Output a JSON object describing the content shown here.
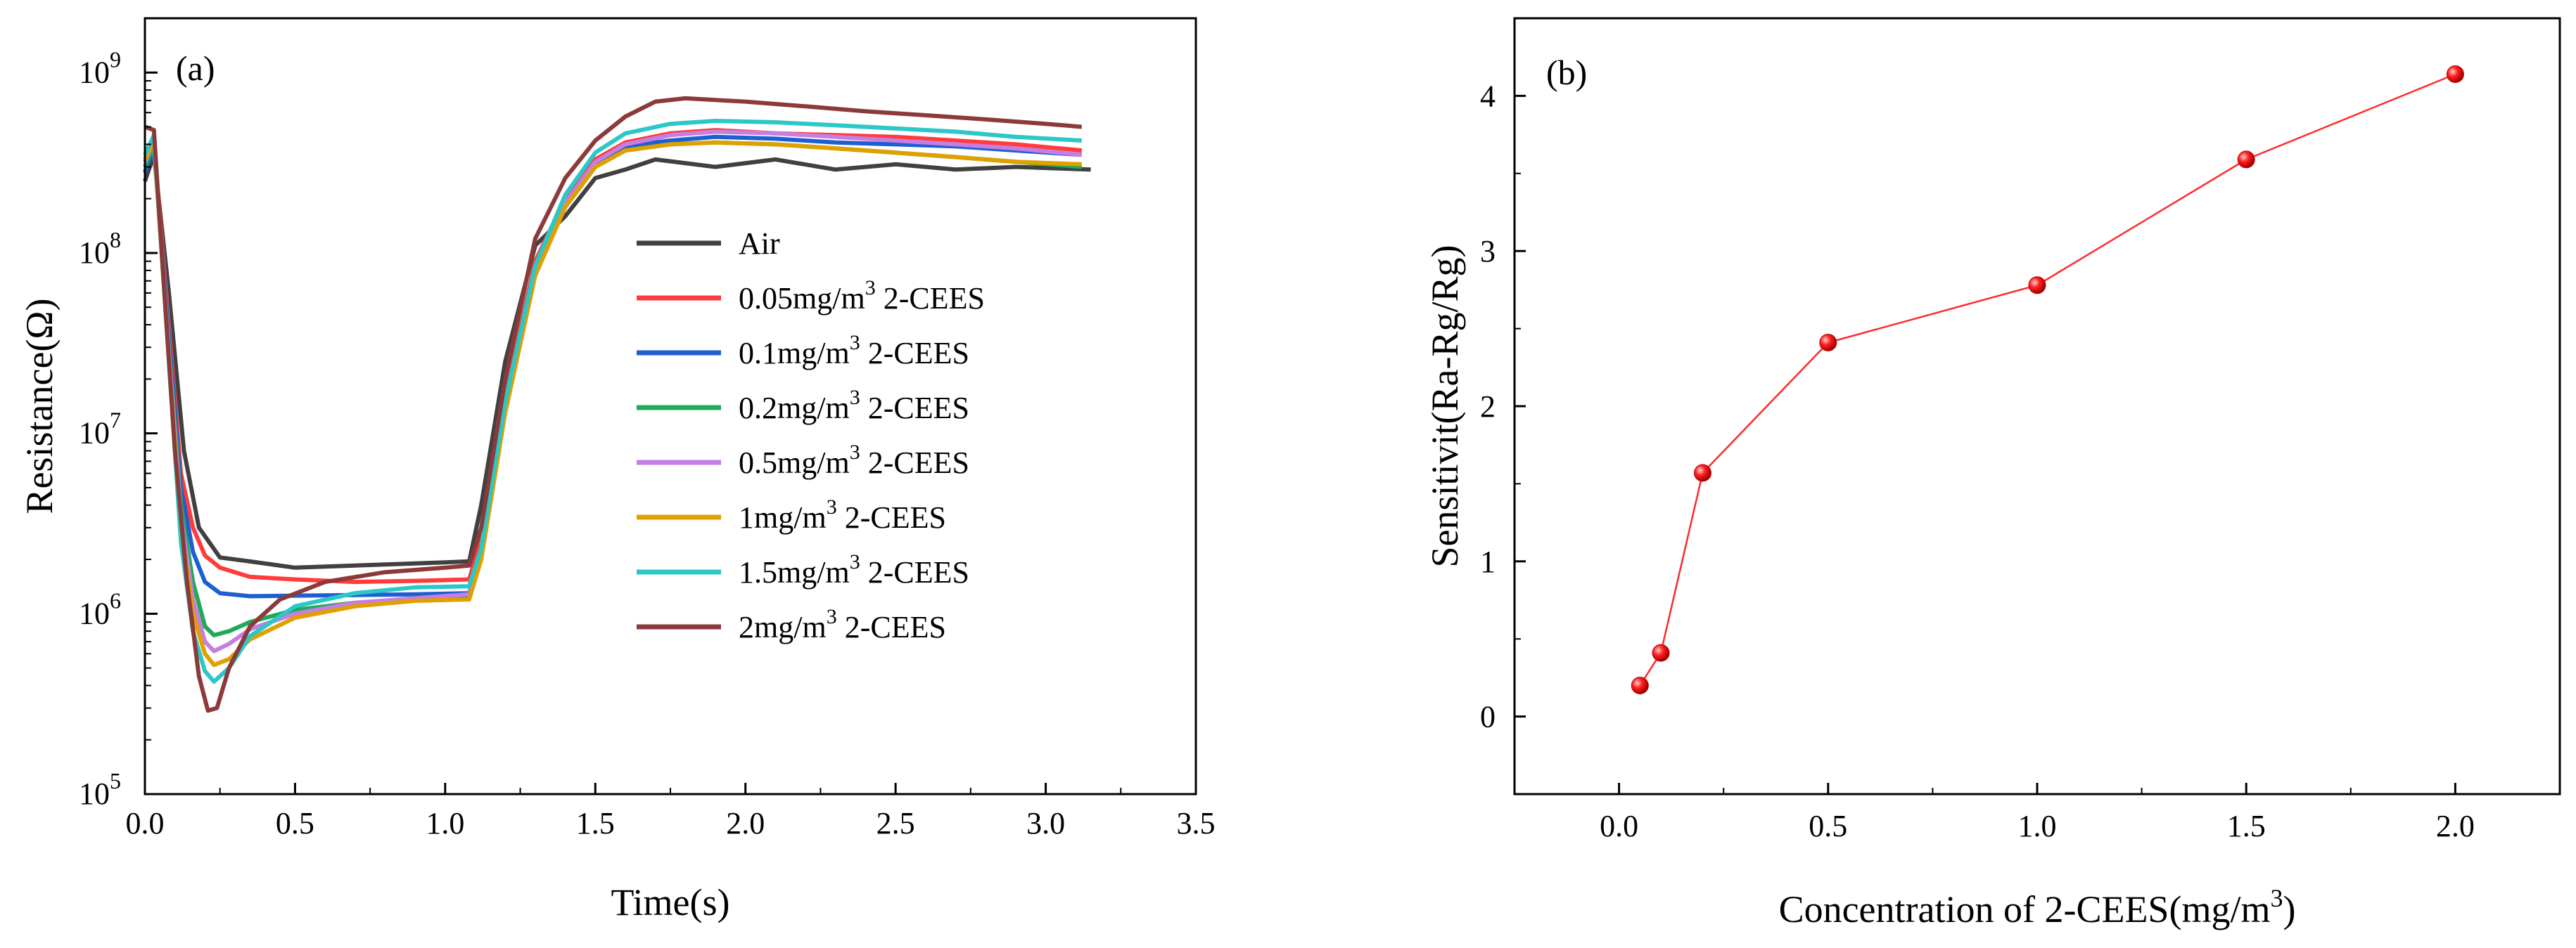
{
  "chart_data": [
    {
      "type": "line",
      "panel_label": "(a)",
      "xlabel": "Time(s)",
      "ylabel": "Resistance(Ω)",
      "xlim": [
        0,
        3.5
      ],
      "ylim": [
        100000,
        2000000000
      ],
      "yscale": "log",
      "xticks": [
        "0.0",
        "0.5",
        "1.0",
        "1.5",
        "2.0",
        "2.5",
        "3.0",
        "3.5"
      ],
      "yticks": [
        {
          "base": "10",
          "exp": "5"
        },
        {
          "base": "10",
          "exp": "6"
        },
        {
          "base": "10",
          "exp": "7"
        },
        {
          "base": "10",
          "exp": "8"
        },
        {
          "base": "10",
          "exp": "9"
        }
      ],
      "legend_position": "center-right",
      "series": [
        {
          "name": "Air",
          "color": "#404040",
          "t": [
            0,
            0.03,
            0.08,
            0.13,
            0.18,
            0.25,
            0.35,
            0.5,
            0.7,
            0.9,
            1.08,
            1.12,
            1.2,
            1.3,
            1.4,
            1.5,
            1.6,
            1.7,
            1.9,
            2.1,
            2.3,
            2.5,
            2.7,
            2.9,
            3.15
          ],
          "v": [
            250000000,
            350000000,
            60000000,
            8000000,
            3000000,
            2050000,
            1950000,
            1800000,
            1850000,
            1900000,
            1950000,
            4000000,
            25000000,
            110000000,
            160000000,
            260000000,
            290000000,
            330000000,
            300000000,
            330000000,
            290000000,
            310000000,
            290000000,
            300000000,
            290000000
          ]
        },
        {
          "name": "0.05mg/m3 2-CEES",
          "color": "#ff3b3b",
          "t": [
            0,
            0.03,
            0.08,
            0.12,
            0.16,
            0.2,
            0.25,
            0.35,
            0.5,
            0.7,
            0.9,
            1.08,
            1.12,
            1.2,
            1.3,
            1.4,
            1.5,
            1.6,
            1.75,
            1.9,
            2.1,
            2.3,
            2.5,
            2.7,
            2.9,
            3.12
          ],
          "v": [
            280000000,
            400000000,
            40000000,
            6000000,
            3000000,
            2100000,
            1800000,
            1600000,
            1550000,
            1500000,
            1520000,
            1550000,
            2600000,
            16000000,
            90000000,
            200000000,
            330000000,
            410000000,
            460000000,
            480000000,
            460000000,
            450000000,
            440000000,
            420000000,
            400000000,
            370000000
          ]
        },
        {
          "name": "0.1mg/m3 2-CEES",
          "color": "#1e5fd0",
          "t": [
            0,
            0.03,
            0.08,
            0.12,
            0.16,
            0.2,
            0.25,
            0.35,
            0.5,
            0.7,
            0.9,
            1.08,
            1.12,
            1.2,
            1.3,
            1.4,
            1.5,
            1.6,
            1.75,
            1.9,
            2.1,
            2.3,
            2.5,
            2.7,
            2.9,
            3.12
          ],
          "v": [
            280000000,
            380000000,
            35000000,
            5000000,
            2200000,
            1500000,
            1300000,
            1250000,
            1260000,
            1270000,
            1280000,
            1300000,
            2200000,
            15000000,
            85000000,
            190000000,
            310000000,
            390000000,
            420000000,
            440000000,
            430000000,
            410000000,
            400000000,
            390000000,
            370000000,
            350000000
          ]
        },
        {
          "name": "0.2mg/m3 2-CEES",
          "color": "#1faa5a",
          "t": [
            0,
            0.03,
            0.08,
            0.12,
            0.16,
            0.2,
            0.23,
            0.28,
            0.35,
            0.5,
            0.7,
            0.9,
            1.08,
            1.12,
            1.2,
            1.3,
            1.4,
            1.5,
            1.6,
            1.75,
            1.9,
            2.1,
            2.3,
            2.5,
            2.7,
            2.9,
            3.12
          ],
          "v": [
            300000000,
            400000000,
            30000000,
            4000000,
            1500000,
            850000,
            760000,
            800000,
            900000,
            1050000,
            1150000,
            1200000,
            1250000,
            2100000,
            14000000,
            80000000,
            180000000,
            300000000,
            370000000,
            400000000,
            410000000,
            400000000,
            380000000,
            360000000,
            340000000,
            320000000,
            300000000
          ]
        },
        {
          "name": "0.5mg/m3 2-CEES",
          "color": "#c67ee2",
          "t": [
            0,
            0.03,
            0.08,
            0.12,
            0.16,
            0.2,
            0.23,
            0.28,
            0.35,
            0.5,
            0.7,
            0.9,
            1.08,
            1.12,
            1.2,
            1.3,
            1.4,
            1.5,
            1.6,
            1.75,
            1.9,
            2.1,
            2.3,
            2.5,
            2.7,
            2.9,
            3.12
          ],
          "v": [
            320000000,
            420000000,
            28000000,
            3500000,
            1200000,
            700000,
            620000,
            680000,
            820000,
            1000000,
            1150000,
            1220000,
            1280000,
            2100000,
            14000000,
            80000000,
            190000000,
            320000000,
            400000000,
            450000000,
            470000000,
            460000000,
            440000000,
            420000000,
            400000000,
            380000000,
            350000000
          ]
        },
        {
          "name": "1mg/m3 2-CEES",
          "color": "#e0a000",
          "t": [
            0,
            0.03,
            0.08,
            0.12,
            0.16,
            0.2,
            0.23,
            0.28,
            0.35,
            0.5,
            0.7,
            0.9,
            1.08,
            1.12,
            1.2,
            1.3,
            1.4,
            1.5,
            1.6,
            1.75,
            1.9,
            2.1,
            2.3,
            2.5,
            2.7,
            2.9,
            3.12
          ],
          "v": [
            330000000,
            420000000,
            26000000,
            3000000,
            1000000,
            600000,
            520000,
            560000,
            720000,
            950000,
            1100000,
            1180000,
            1200000,
            2000000,
            13000000,
            75000000,
            180000000,
            300000000,
            370000000,
            400000000,
            410000000,
            400000000,
            380000000,
            360000000,
            340000000,
            320000000,
            310000000
          ]
        },
        {
          "name": "1.5mg/m3 2-CEES",
          "color": "#2cc7c7",
          "t": [
            0,
            0.03,
            0.08,
            0.12,
            0.16,
            0.2,
            0.23,
            0.28,
            0.35,
            0.5,
            0.7,
            0.9,
            1.08,
            1.12,
            1.2,
            1.3,
            1.4,
            1.5,
            1.6,
            1.75,
            1.9,
            2.1,
            2.3,
            2.5,
            2.7,
            2.9,
            3.12
          ],
          "v": [
            350000000,
            450000000,
            25000000,
            2500000,
            800000,
            480000,
            420000,
            500000,
            750000,
            1100000,
            1300000,
            1400000,
            1420000,
            2300000,
            15000000,
            85000000,
            210000000,
            360000000,
            460000000,
            520000000,
            540000000,
            530000000,
            510000000,
            490000000,
            470000000,
            440000000,
            420000000
          ]
        },
        {
          "name": "2mg/m3 2-CEES",
          "color": "#8b3a3a",
          "t": [
            0,
            0.03,
            0.06,
            0.1,
            0.14,
            0.18,
            0.21,
            0.24,
            0.28,
            0.35,
            0.45,
            0.6,
            0.8,
            1.0,
            1.08,
            1.12,
            1.2,
            1.3,
            1.4,
            1.5,
            1.6,
            1.7,
            1.8,
            2.0,
            2.2,
            2.4,
            2.6,
            2.8,
            3.0,
            3.12
          ],
          "v": [
            500000000,
            480000000,
            80000000,
            8000000,
            1500000,
            450000,
            290000,
            300000,
            500000,
            850000,
            1200000,
            1500000,
            1700000,
            1800000,
            1850000,
            3000000,
            20000000,
            120000000,
            260000000,
            420000000,
            570000000,
            690000000,
            720000000,
            690000000,
            650000000,
            610000000,
            580000000,
            550000000,
            520000000,
            500000000
          ]
        }
      ]
    },
    {
      "type": "line",
      "panel_label": "(b)",
      "xlabel": "Concentration of 2-CEES(mg/m",
      "xlabel_sup": "3",
      "xlabel_end": ")",
      "ylabel": "Sensitivit(Ra-Rg/Rg)",
      "xlim": [
        -0.25,
        2.25
      ],
      "ylim": [
        -0.5,
        4.5
      ],
      "xticks": [
        "0.0",
        "0.5",
        "1.0",
        "1.5",
        "2.0"
      ],
      "yticks": [
        "0",
        "1",
        "2",
        "3",
        "4"
      ],
      "color": "#ff2a2a",
      "x": [
        0.05,
        0.1,
        0.2,
        0.5,
        1.0,
        1.5,
        2.0
      ],
      "y": [
        0.2,
        0.41,
        1.57,
        2.41,
        2.78,
        3.59,
        4.14
      ]
    }
  ]
}
